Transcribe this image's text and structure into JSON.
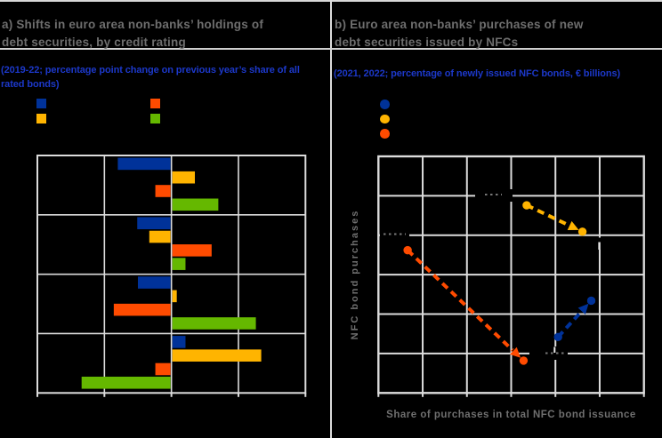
{
  "panels": {
    "a": {
      "title": "a) Shifts in euro area non-banks’ holdings of\ndebt securities, by credit rating",
      "subtitle": "(2019-22; percentage point change on previous year’s share of all\nrated bonds)",
      "legend": [
        {
          "series": "blue",
          "color": "#003299"
        },
        {
          "series": "orange",
          "color": "#FF4B00"
        },
        {
          "series": "yellow",
          "color": "#FFB400"
        },
        {
          "series": "green",
          "color": "#65B800"
        }
      ]
    },
    "b": {
      "title": "b) Euro area non-banks’ purchases of new\ndebt securities issued by NFCs",
      "subtitle": "(2021, 2022; percentage of newly issued NFC bonds, € billions)",
      "legend": [
        {
          "series": "blue",
          "color": "#003299"
        },
        {
          "series": "yellow",
          "color": "#FFB400"
        },
        {
          "series": "orange",
          "color": "#FF4B00"
        }
      ],
      "xlabel": "Share of purchases in total NFC bond issuance",
      "ylabel": "NFC bond purchases"
    }
  },
  "colors": {
    "blue": "#003299",
    "yellow": "#FFB400",
    "orange": "#FF4B00",
    "green": "#65B800",
    "grid": "#DCDCDC",
    "title_gray": "#6E6E6E",
    "subtitle_blue": "#1C38C9",
    "axis_label_gray": "#6F6F6F"
  },
  "chart_data": [
    {
      "panel": "a",
      "type": "bar",
      "orientation": "horizontal",
      "categories": [
        "",
        "",
        "",
        ""
      ],
      "series": [
        {
          "name": "blue",
          "color": "#003299",
          "values": [
            -0.8,
            -0.51,
            -0.5,
            0.21
          ]
        },
        {
          "name": "yellow",
          "color": "#FFB400",
          "values": [
            0.35,
            -0.33,
            0.08,
            1.34
          ]
        },
        {
          "name": "orange",
          "color": "#FF4B00",
          "values": [
            -0.24,
            0.6,
            -0.86,
            -0.24
          ]
        },
        {
          "name": "green",
          "color": "#65B800",
          "values": [
            0.7,
            0.21,
            1.26,
            -1.34
          ]
        }
      ],
      "xlim": [
        -2,
        2
      ],
      "gridline_step": 1,
      "tick_labels_visible": false
    },
    {
      "panel": "b",
      "type": "scatter",
      "style": "dashed-arrows",
      "xlabel": "Share of purchases in total NFC bond issuance",
      "ylabel": "NFC bond purchases",
      "grid_cols": 6,
      "grid_rows": 6,
      "units": "grid cells; axis tick labels not visible",
      "arrows": [
        {
          "name": "blue",
          "color": "#003299",
          "from": [
            4.06,
            1.42
          ],
          "to": [
            4.81,
            2.34
          ]
        },
        {
          "name": "yellow",
          "color": "#FFB400",
          "from": [
            3.35,
            4.76
          ],
          "to": [
            4.61,
            4.09
          ]
        },
        {
          "name": "orange",
          "color": "#FF4B00",
          "from": [
            0.66,
            3.62
          ],
          "to": [
            3.28,
            0.82
          ]
        }
      ]
    }
  ]
}
